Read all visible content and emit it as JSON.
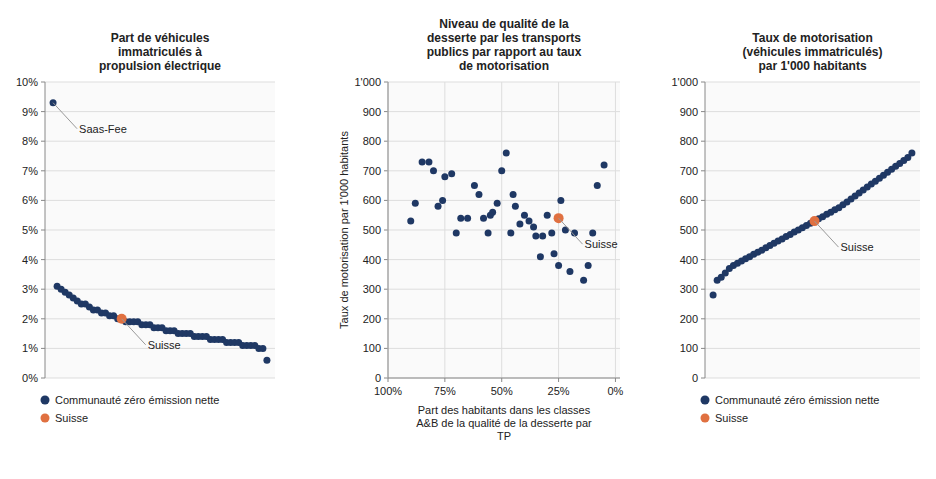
{
  "chart_data": [
    {
      "type": "scatter",
      "title": "Part de véhicules\nimmatriculés à\npropulsion électrique",
      "series": [
        {
          "name": "Communauté zéro émission nette",
          "color": "#1f3864",
          "values": [
            9.3,
            3.1,
            3.0,
            2.9,
            2.8,
            2.7,
            2.6,
            2.5,
            2.5,
            2.4,
            2.3,
            2.3,
            2.2,
            2.2,
            2.1,
            2.1,
            2.0,
            null,
            1.9,
            1.9,
            1.9,
            1.9,
            1.8,
            1.8,
            1.8,
            1.7,
            1.7,
            1.7,
            1.6,
            1.6,
            1.6,
            1.5,
            1.5,
            1.5,
            1.5,
            1.4,
            1.4,
            1.4,
            1.4,
            1.3,
            1.3,
            1.3,
            1.3,
            1.2,
            1.2,
            1.2,
            1.2,
            1.1,
            1.1,
            1.1,
            1.1,
            1.0,
            1.0,
            0.6
          ]
        },
        {
          "name": "Suisse",
          "color": "#e07040",
          "values": [
            null,
            null,
            null,
            null,
            null,
            null,
            null,
            null,
            null,
            null,
            null,
            null,
            null,
            null,
            null,
            null,
            null,
            2.0,
            null,
            null,
            null,
            null,
            null,
            null,
            null,
            null,
            null,
            null,
            null,
            null,
            null,
            null,
            null,
            null,
            null,
            null,
            null,
            null,
            null,
            null,
            null,
            null,
            null,
            null,
            null,
            null,
            null,
            null,
            null,
            null,
            null,
            null,
            null,
            null
          ]
        }
      ],
      "ylim": [
        0,
        10
      ],
      "yticks": [
        {
          "value": 0,
          "label": "0%"
        },
        {
          "value": 1,
          "label": "1%"
        },
        {
          "value": 2,
          "label": "2%"
        },
        {
          "value": 3,
          "label": "3%"
        },
        {
          "value": 4,
          "label": "4%"
        },
        {
          "value": 5,
          "label": "5%"
        },
        {
          "value": 6,
          "label": "6%"
        },
        {
          "value": 7,
          "label": "7%"
        },
        {
          "value": 8,
          "label": "8%"
        },
        {
          "value": 9,
          "label": "9%"
        },
        {
          "value": 10,
          "label": "10%"
        }
      ],
      "grid": "y",
      "tick_labels": "y",
      "legend": "lower left",
      "annotations": [
        {
          "text": "Saas-Fee",
          "series": 0,
          "index": 0
        },
        {
          "text": "Suisse",
          "series": 1,
          "index": 17
        }
      ]
    },
    {
      "type": "scatter",
      "title": "Niveau de qualité de la\ndesserte par les transports\npublics par rapport au taux\nde motorisation",
      "x_label": "Part des habitants dans les classes\nA&B de la qualité de la desserte par\nTP",
      "y_label": "Taux de motorisation par 1'000 habitants",
      "series": [
        {
          "name": "Communauté zéro émission nette",
          "color": "#1f3864",
          "x": [
            5,
            8,
            10,
            12,
            14,
            18,
            20,
            22,
            24,
            25,
            27,
            28,
            30,
            32,
            33,
            35,
            36,
            38,
            40,
            42,
            44,
            45,
            46,
            48,
            50,
            52,
            54,
            55,
            56,
            58,
            60,
            62,
            65,
            68,
            70,
            72,
            75,
            76,
            78,
            80,
            82,
            85,
            88,
            90
          ],
          "values": [
            720,
            650,
            490,
            380,
            330,
            490,
            360,
            500,
            600,
            380,
            420,
            490,
            550,
            480,
            410,
            480,
            510,
            530,
            550,
            520,
            580,
            620,
            490,
            760,
            700,
            590,
            560,
            550,
            490,
            540,
            620,
            650,
            540,
            540,
            490,
            690,
            680,
            600,
            580,
            700,
            730,
            730,
            590,
            530
          ]
        },
        {
          "name": "Suisse",
          "color": "#e07040",
          "x": [
            25
          ],
          "values": [
            540
          ]
        }
      ],
      "xlim": [
        100,
        -2
      ],
      "xticks": [
        {
          "value": 100,
          "label": "100%"
        },
        {
          "value": 75,
          "label": "75%"
        },
        {
          "value": 50,
          "label": "50%"
        },
        {
          "value": 25,
          "label": "25%"
        },
        {
          "value": 0,
          "label": "0%"
        }
      ],
      "ylim": [
        0,
        1000
      ],
      "yticks": [
        0,
        100,
        200,
        300,
        400,
        500,
        600,
        700,
        800,
        900,
        {
          "value": 1000,
          "label": "1'000"
        }
      ],
      "grid": true,
      "annotations": [
        {
          "text": "Suisse",
          "series": 1,
          "index": 0
        }
      ]
    },
    {
      "type": "scatter",
      "title": "Taux de motorisation\n(véhicules immatriculés)\npar 1'000 habitants",
      "series": [
        {
          "name": "Communauté zéro émission nette",
          "color": "#1f3864",
          "values": [
            280,
            330,
            340,
            355,
            370,
            380,
            388,
            395,
            403,
            410,
            418,
            425,
            432,
            440,
            448,
            455,
            463,
            470,
            478,
            485,
            493,
            500,
            508,
            515,
            523,
            null,
            538,
            545,
            553,
            560,
            568,
            575,
            585,
            595,
            605,
            615,
            625,
            635,
            645,
            655,
            665,
            675,
            685,
            695,
            705,
            715,
            725,
            735,
            745,
            760
          ]
        },
        {
          "name": "Suisse",
          "color": "#e07040",
          "values": [
            null,
            null,
            null,
            null,
            null,
            null,
            null,
            null,
            null,
            null,
            null,
            null,
            null,
            null,
            null,
            null,
            null,
            null,
            null,
            null,
            null,
            null,
            null,
            null,
            null,
            530,
            null,
            null,
            null,
            null,
            null,
            null,
            null,
            null,
            null,
            null,
            null,
            null,
            null,
            null,
            null,
            null,
            null,
            null,
            null,
            null,
            null,
            null,
            null,
            null
          ]
        }
      ],
      "ylim": [
        0,
        1000
      ],
      "yticks": [
        0,
        100,
        200,
        300,
        400,
        500,
        600,
        700,
        800,
        900,
        {
          "value": 1000,
          "label": "1'000"
        }
      ],
      "grid": "y",
      "tick_labels": "y",
      "legend": "lower left",
      "annotations": [
        {
          "text": "Suisse",
          "series": 1,
          "index": 25
        }
      ]
    }
  ]
}
